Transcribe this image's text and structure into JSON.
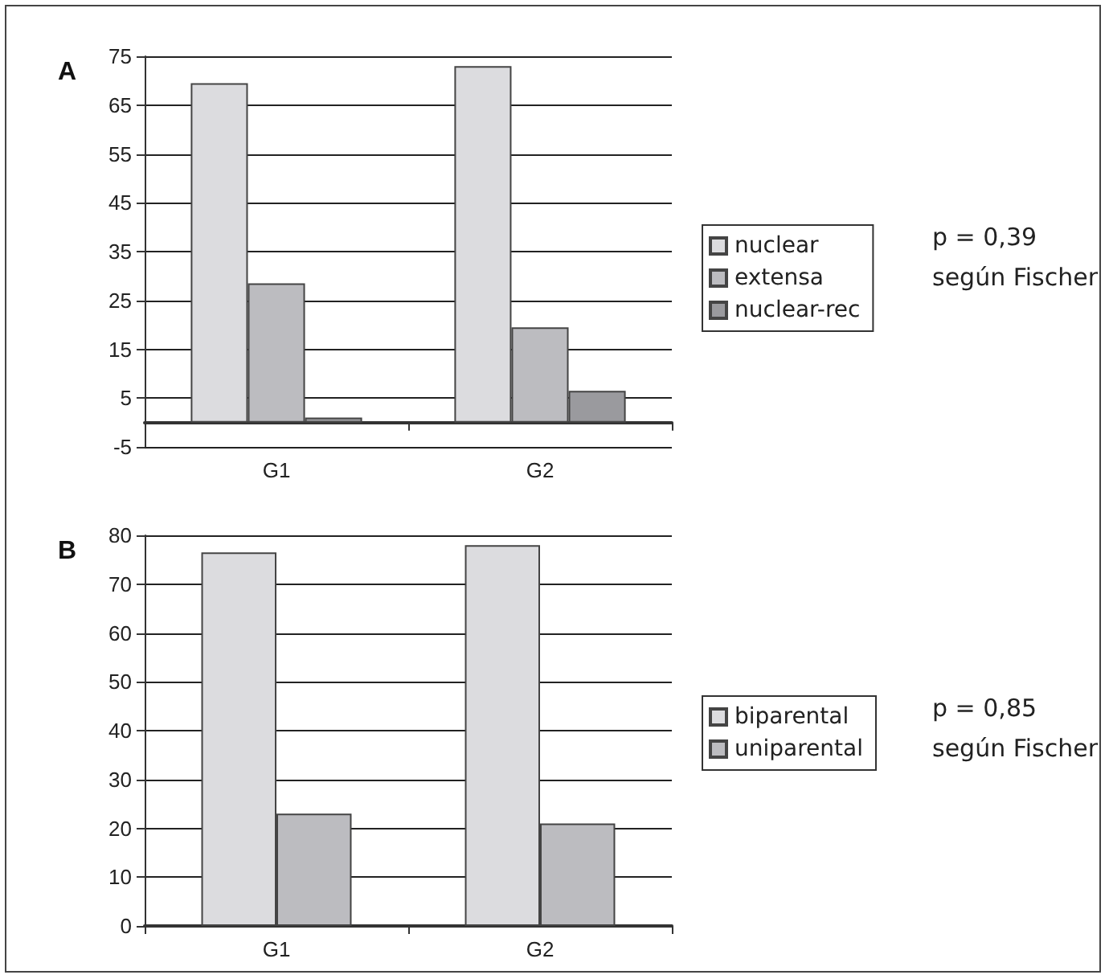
{
  "chart_data": [
    {
      "type": "bar",
      "title": "A",
      "categories": [
        "G1",
        "G2"
      ],
      "series": [
        {
          "name": "nuclear",
          "color": "#dcdcdf",
          "values": [
            69.5,
            73
          ]
        },
        {
          "name": "extensa",
          "color": "#bcbcc0",
          "values": [
            28.5,
            19.5
          ]
        },
        {
          "name": "nuclear-rec",
          "color": "#9a9a9e",
          "values": [
            1,
            6.5
          ]
        }
      ],
      "ylim": [
        -5,
        75
      ],
      "yticks": [
        -5,
        5,
        15,
        25,
        35,
        45,
        55,
        65,
        75
      ],
      "grid": "y",
      "legend": "right",
      "annotations": [
        "p = 0,39",
        "según Fischer"
      ]
    },
    {
      "type": "bar",
      "title": "B",
      "categories": [
        "G1",
        "G2"
      ],
      "series": [
        {
          "name": "biparental",
          "color": "#dcdcdf",
          "values": [
            76.5,
            78
          ]
        },
        {
          "name": "uniparental",
          "color": "#bcbcc0",
          "values": [
            23,
            21
          ]
        }
      ],
      "ylim": [
        0,
        80
      ],
      "yticks": [
        0,
        10,
        20,
        30,
        40,
        50,
        60,
        70,
        80
      ],
      "grid": "y",
      "legend": "right",
      "annotations": [
        "p = 0,85",
        "según Fischer"
      ]
    }
  ]
}
